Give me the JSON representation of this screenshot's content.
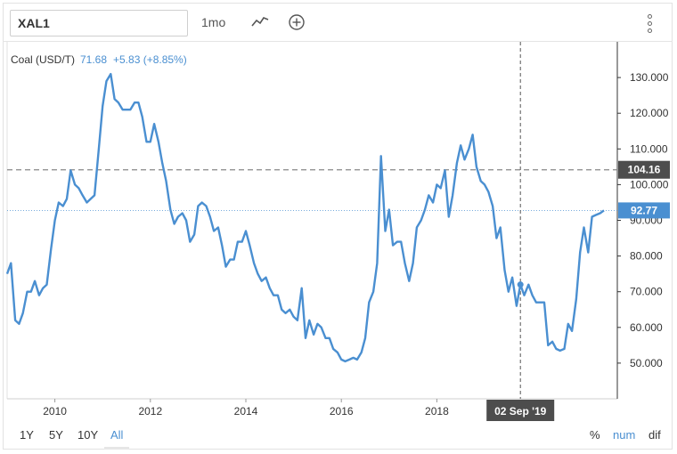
{
  "toolbar": {
    "symbol": "XAL1",
    "period": "1mo",
    "menu_icon": "more-vertical-icon",
    "chart_type_icon": "line-chart-icon",
    "add_icon": "plus-circle-icon"
  },
  "legend": {
    "name": "Coal (USD/T)",
    "value": "71.68",
    "change": "+5.83 (+8.85%)"
  },
  "crosshair": {
    "date_label": "02 Sep '19",
    "price_label": "104.16"
  },
  "last_price_label": "92.77",
  "range_buttons": [
    "1Y",
    "5Y",
    "10Y",
    "All"
  ],
  "active_range": "All",
  "mode_buttons": [
    "%",
    "num",
    "dif"
  ],
  "active_mode": "num",
  "colors": {
    "line": "#4a8fd1",
    "accent": "#4a8fd1",
    "label_dark": "#4d4d4d"
  },
  "chart_data": {
    "type": "line",
    "xlim": [
      2009.0,
      2020.5
    ],
    "ylim": [
      40,
      140
    ],
    "x_ticks": [
      2010,
      2012,
      2014,
      2016,
      2018
    ],
    "y_ticks": [
      50,
      60,
      70,
      80,
      90,
      100,
      110,
      120,
      130
    ],
    "y_tick_labels": [
      "50.000",
      "60.000",
      "70.000",
      "80.000",
      "90.000",
      "100.000",
      "110.000",
      "120.000",
      "130.000"
    ],
    "series": [
      {
        "points": [
          [
            2009.0,
            75
          ],
          [
            2009.08,
            78
          ],
          [
            2009.17,
            62
          ],
          [
            2009.25,
            61
          ],
          [
            2009.33,
            64
          ],
          [
            2009.42,
            70
          ],
          [
            2009.5,
            70
          ],
          [
            2009.58,
            73
          ],
          [
            2009.67,
            69
          ],
          [
            2009.75,
            71
          ],
          [
            2009.83,
            72
          ],
          [
            2009.92,
            82
          ],
          [
            2010.0,
            90
          ],
          [
            2010.08,
            95
          ],
          [
            2010.17,
            94
          ],
          [
            2010.25,
            96
          ],
          [
            2010.33,
            104
          ],
          [
            2010.42,
            100
          ],
          [
            2010.5,
            99
          ],
          [
            2010.58,
            97
          ],
          [
            2010.67,
            95
          ],
          [
            2010.75,
            96
          ],
          [
            2010.83,
            97
          ],
          [
            2010.92,
            110
          ],
          [
            2011.0,
            122
          ],
          [
            2011.08,
            129
          ],
          [
            2011.17,
            131
          ],
          [
            2011.25,
            124
          ],
          [
            2011.33,
            123
          ],
          [
            2011.42,
            121
          ],
          [
            2011.5,
            121
          ],
          [
            2011.58,
            121
          ],
          [
            2011.67,
            123
          ],
          [
            2011.75,
            123
          ],
          [
            2011.83,
            119
          ],
          [
            2011.92,
            112
          ],
          [
            2012.0,
            112
          ],
          [
            2012.08,
            117
          ],
          [
            2012.17,
            112
          ],
          [
            2012.25,
            106
          ],
          [
            2012.33,
            101
          ],
          [
            2012.42,
            93
          ],
          [
            2012.5,
            89
          ],
          [
            2012.58,
            91
          ],
          [
            2012.67,
            92
          ],
          [
            2012.75,
            90
          ],
          [
            2012.83,
            84
          ],
          [
            2012.92,
            86
          ],
          [
            2013.0,
            94
          ],
          [
            2013.08,
            95
          ],
          [
            2013.17,
            94
          ],
          [
            2013.25,
            91
          ],
          [
            2013.33,
            87
          ],
          [
            2013.42,
            88
          ],
          [
            2013.5,
            83
          ],
          [
            2013.58,
            77
          ],
          [
            2013.67,
            79
          ],
          [
            2013.75,
            79
          ],
          [
            2013.83,
            84
          ],
          [
            2013.92,
            84
          ],
          [
            2014.0,
            87
          ],
          [
            2014.08,
            83
          ],
          [
            2014.17,
            78
          ],
          [
            2014.25,
            75
          ],
          [
            2014.33,
            73
          ],
          [
            2014.42,
            74
          ],
          [
            2014.5,
            71
          ],
          [
            2014.58,
            69
          ],
          [
            2014.67,
            69
          ],
          [
            2014.75,
            65
          ],
          [
            2014.83,
            64
          ],
          [
            2014.92,
            65
          ],
          [
            2015.0,
            63
          ],
          [
            2015.08,
            62
          ],
          [
            2015.17,
            71
          ],
          [
            2015.25,
            57
          ],
          [
            2015.33,
            62
          ],
          [
            2015.42,
            58
          ],
          [
            2015.5,
            61
          ],
          [
            2015.58,
            60
          ],
          [
            2015.67,
            57
          ],
          [
            2015.75,
            57
          ],
          [
            2015.83,
            54
          ],
          [
            2015.92,
            53
          ],
          [
            2016.0,
            51
          ],
          [
            2016.08,
            50.5
          ],
          [
            2016.17,
            51
          ],
          [
            2016.25,
            51.5
          ],
          [
            2016.33,
            51
          ],
          [
            2016.42,
            53
          ],
          [
            2016.5,
            57
          ],
          [
            2016.58,
            67
          ],
          [
            2016.67,
            70
          ],
          [
            2016.75,
            78
          ],
          [
            2016.83,
            108
          ],
          [
            2016.92,
            87
          ],
          [
            2017.0,
            93
          ],
          [
            2017.08,
            83
          ],
          [
            2017.17,
            84
          ],
          [
            2017.25,
            84
          ],
          [
            2017.33,
            78
          ],
          [
            2017.42,
            73
          ],
          [
            2017.5,
            78
          ],
          [
            2017.58,
            88
          ],
          [
            2017.67,
            90
          ],
          [
            2017.75,
            93
          ],
          [
            2017.83,
            97
          ],
          [
            2017.92,
            95
          ],
          [
            2018.0,
            100
          ],
          [
            2018.08,
            99
          ],
          [
            2018.17,
            104
          ],
          [
            2018.25,
            91
          ],
          [
            2018.33,
            97
          ],
          [
            2018.42,
            106
          ],
          [
            2018.5,
            111
          ],
          [
            2018.58,
            107
          ],
          [
            2018.67,
            110
          ],
          [
            2018.75,
            114
          ],
          [
            2018.83,
            105
          ],
          [
            2018.92,
            101
          ],
          [
            2019.0,
            100
          ],
          [
            2019.08,
            98
          ],
          [
            2019.17,
            94
          ],
          [
            2019.25,
            85
          ],
          [
            2019.33,
            88
          ],
          [
            2019.42,
            76
          ],
          [
            2019.5,
            70
          ],
          [
            2019.58,
            74
          ],
          [
            2019.67,
            66
          ],
          [
            2019.75,
            72
          ],
          [
            2019.83,
            69
          ],
          [
            2019.92,
            72
          ],
          [
            2020.0,
            69
          ],
          [
            2020.08,
            67
          ],
          [
            2020.17,
            67
          ],
          [
            2020.25,
            67
          ],
          [
            2020.33,
            55
          ],
          [
            2020.42,
            56
          ],
          [
            2020.5,
            54
          ],
          [
            2020.58,
            53.5
          ],
          [
            2020.67,
            54
          ],
          [
            2020.75,
            61
          ],
          [
            2020.83,
            59
          ],
          [
            2020.92,
            68
          ],
          [
            2021.0,
            81
          ],
          [
            2021.08,
            88
          ],
          [
            2021.17,
            81
          ],
          [
            2021.25,
            91
          ],
          [
            2021.33,
            91.5
          ],
          [
            2021.42,
            92
          ],
          [
            2021.5,
            92.77
          ]
        ]
      }
    ],
    "hover_point": [
      2019.75,
      72
    ],
    "crosshair_y": 104.16,
    "last_value": 92.77
  }
}
